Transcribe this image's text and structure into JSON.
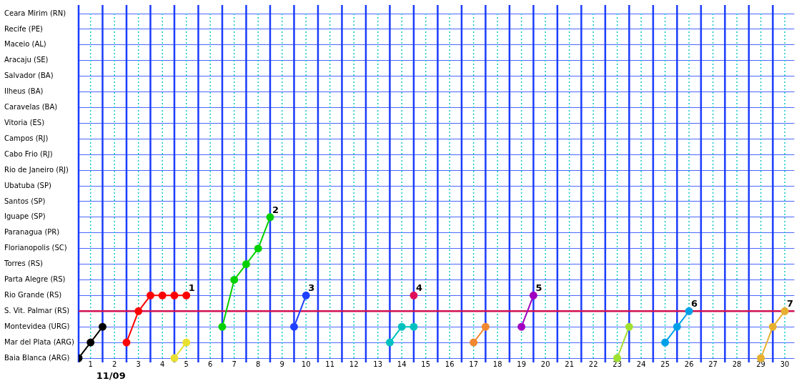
{
  "chart_data": {
    "type": "line",
    "orientation": "horizontal",
    "categories": [
      "Ceara Mirim (RN)",
      "Recife (PE)",
      "Maceio (AL)",
      "Aracaju (SE)",
      "Salvador (BA)",
      "Ilheus (BA)",
      "Caravelas (BA)",
      "Vitoria (ES)",
      "Campos (RJ)",
      "Cabo Frio (RJ)",
      "Rio de Janeiro (RJ)",
      "Ubatuba (SP)",
      "Santos (SP)",
      "Iguape (SP)",
      "Paranagua (PR)",
      "Florianopolis (SC)",
      "Torres (RS)",
      "Parta Alegre (RS)",
      "Rio Grande (RS)",
      "S. Vit. Palmar (RS)",
      "Montevidea (URG)",
      "Mar del Plata (ARG)",
      "Baia Blanca (ARG)"
    ],
    "xlim": [
      0.5,
      30.4
    ],
    "xticks": [
      1,
      2,
      3,
      4,
      5,
      6,
      7,
      8,
      9,
      10,
      11,
      12,
      13,
      14,
      15,
      16,
      17,
      18,
      19,
      20,
      21,
      22,
      23,
      24,
      25,
      26,
      27,
      28,
      29,
      30
    ],
    "series": [
      {
        "color": "#000000",
        "values": [
          0.5,
          1,
          1.5
        ],
        "x": [
          "Baia Blanca (ARG)",
          "Mar del Plata (ARG)",
          "Montevidea (URG)"
        ]
      },
      {
        "color": "#ff0000",
        "values": [
          2.5,
          3,
          3.5,
          4,
          4.5,
          5
        ],
        "x": [
          "Mar del Plata (ARG)",
          "S. Vit. Palmar (RS)",
          "Rio Grande (RS)",
          "Rio Grande (RS)",
          "Rio Grande (RS)",
          "Rio Grande (RS)"
        ]
      },
      {
        "color": "#e8e030",
        "values": [
          4.5,
          5
        ],
        "x": [
          "Baia Blanca (ARG)",
          "Mar del Plata (ARG)"
        ]
      },
      {
        "color": "#00d000",
        "values": [
          6.5,
          7,
          7.5,
          8,
          8.5
        ],
        "x": [
          "Montevidea (URG)",
          "Parta Alegre (RS)",
          "Torres (RS)",
          "Florianopolis (SC)",
          "Iguape (SP)"
        ]
      },
      {
        "color": "#2040ff",
        "values": [
          9.5,
          10
        ],
        "x": [
          "Montevidea (URG)",
          "Rio Grande (RS)"
        ]
      },
      {
        "color": "#00c0c0",
        "values": [
          13.5,
          14,
          14.5
        ],
        "x": [
          "Mar del Plata (ARG)",
          "Montevidea (URG)",
          "Montevidea (URG)"
        ]
      },
      {
        "color": "#e0105a",
        "values": [
          14.5
        ],
        "x": [
          "Rio Grande (RS)"
        ]
      },
      {
        "color": "#f08830",
        "values": [
          17,
          17.5
        ],
        "x": [
          "Mar del Plata (ARG)",
          "Montevidea (URG)"
        ]
      },
      {
        "color": "#a000c0",
        "values": [
          19,
          19.5
        ],
        "x": [
          "Montevidea (URG)",
          "Rio Grande (RS)"
        ]
      },
      {
        "color": "#a0e030",
        "values": [
          23,
          23.5
        ],
        "x": [
          "Baia Blanca (ARG)",
          "Montevidea (URG)"
        ]
      },
      {
        "color": "#00a0e8",
        "values": [
          25,
          25.5,
          26
        ],
        "x": [
          "Mar del Plata (ARG)",
          "Montevidea (URG)",
          "S. Vit. Palmar (RS)"
        ]
      },
      {
        "color": "#e8b030",
        "values": [
          29,
          29.5,
          30
        ],
        "x": [
          "Baia Blanca (ARG)",
          "Montevidea (URG)",
          "S. Vit. Palmar (RS)"
        ]
      }
    ],
    "ref_lines": [
      {
        "axis": "y",
        "value": "S. Vit. Palmar (RS)",
        "color": "#d01050"
      },
      {
        "axis": "x",
        "value": 0.5,
        "color": "#1a3cff"
      },
      {
        "axis": "x",
        "value": 1.5,
        "color": "#1a3cff"
      },
      {
        "axis": "x",
        "value": 2.5,
        "color": "#1a3cff"
      },
      {
        "axis": "x",
        "value": 3.5,
        "color": "#1a3cff"
      },
      {
        "axis": "x",
        "value": 4.5,
        "color": "#1a3cff"
      },
      {
        "axis": "x",
        "value": 5.5,
        "color": "#1a3cff"
      },
      {
        "axis": "x",
        "value": 6.5,
        "color": "#1a3cff"
      },
      {
        "axis": "x",
        "value": 7.5,
        "color": "#1a3cff"
      },
      {
        "axis": "x",
        "value": 8.5,
        "color": "#1a3cff"
      },
      {
        "axis": "x",
        "value": 9.5,
        "color": "#1a3cff"
      },
      {
        "axis": "x",
        "value": 10.5,
        "color": "#1a3cff"
      },
      {
        "axis": "x",
        "value": 11.5,
        "color": "#1a3cff"
      },
      {
        "axis": "x",
        "value": 12.5,
        "color": "#1a3cff"
      },
      {
        "axis": "x",
        "value": 13.5,
        "color": "#1a3cff"
      },
      {
        "axis": "x",
        "value": 14.5,
        "color": "#1a3cff"
      },
      {
        "axis": "x",
        "value": 15.5,
        "color": "#1a3cff"
      },
      {
        "axis": "x",
        "value": 16.5,
        "color": "#1a3cff"
      },
      {
        "axis": "x",
        "value": 17.5,
        "color": "#1a3cff"
      },
      {
        "axis": "x",
        "value": 18.5,
        "color": "#1a3cff"
      },
      {
        "axis": "x",
        "value": 19.5,
        "color": "#1a3cff"
      },
      {
        "axis": "x",
        "value": 20.5,
        "color": "#1a3cff"
      },
      {
        "axis": "x",
        "value": 21.5,
        "color": "#1a3cff"
      },
      {
        "axis": "x",
        "value": 22.5,
        "color": "#1a3cff"
      },
      {
        "axis": "x",
        "value": 23.5,
        "color": "#1a3cff"
      },
      {
        "axis": "x",
        "value": 24.5,
        "color": "#1a3cff"
      },
      {
        "axis": "x",
        "value": 25.5,
        "color": "#1a3cff"
      },
      {
        "axis": "x",
        "value": 26.5,
        "color": "#1a3cff"
      },
      {
        "axis": "x",
        "value": 27.5,
        "color": "#1a3cff"
      },
      {
        "axis": "x",
        "value": 28.5,
        "color": "#1a3cff"
      },
      {
        "axis": "x",
        "value": 29.5,
        "color": "#1a3cff"
      },
      {
        "axis": "x",
        "value": 1,
        "color": "#10c8c8",
        "line_style": "dotted"
      },
      {
        "axis": "x",
        "value": 2,
        "color": "#10c8c8",
        "line_style": "dotted"
      },
      {
        "axis": "x",
        "value": 3,
        "color": "#10c8c8",
        "line_style": "dotted"
      },
      {
        "axis": "x",
        "value": 4,
        "color": "#10c8c8",
        "line_style": "dotted"
      },
      {
        "axis": "x",
        "value": 5,
        "color": "#10c8c8",
        "line_style": "dotted"
      },
      {
        "axis": "x",
        "value": 6,
        "color": "#10c8c8",
        "line_style": "dotted"
      },
      {
        "axis": "x",
        "value": 7,
        "color": "#10c8c8",
        "line_style": "dotted"
      },
      {
        "axis": "x",
        "value": 8,
        "color": "#10c8c8",
        "line_style": "dotted"
      },
      {
        "axis": "x",
        "value": 9,
        "color": "#10c8c8",
        "line_style": "dotted"
      },
      {
        "axis": "x",
        "value": 10,
        "color": "#10c8c8",
        "line_style": "dotted"
      },
      {
        "axis": "x",
        "value": 11,
        "color": "#10c8c8",
        "line_style": "dotted"
      },
      {
        "axis": "x",
        "value": 12,
        "color": "#10c8c8",
        "line_style": "dotted"
      },
      {
        "axis": "x",
        "value": 13,
        "color": "#10c8c8",
        "line_style": "dotted"
      },
      {
        "axis": "x",
        "value": 14,
        "color": "#10c8c8",
        "line_style": "dotted"
      },
      {
        "axis": "x",
        "value": 15,
        "color": "#10c8c8",
        "line_style": "dotted"
      },
      {
        "axis": "x",
        "value": 16,
        "color": "#10c8c8",
        "line_style": "dotted"
      },
      {
        "axis": "x",
        "value": 17,
        "color": "#10c8c8",
        "line_style": "dotted"
      },
      {
        "axis": "x",
        "value": 18,
        "color": "#10c8c8",
        "line_style": "dotted"
      },
      {
        "axis": "x",
        "value": 19,
        "color": "#10c8c8",
        "line_style": "dotted"
      },
      {
        "axis": "x",
        "value": 20,
        "color": "#10c8c8",
        "line_style": "dotted"
      },
      {
        "axis": "x",
        "value": 21,
        "color": "#10c8c8",
        "line_style": "dotted"
      },
      {
        "axis": "x",
        "value": 22,
        "color": "#10c8c8",
        "line_style": "dotted"
      },
      {
        "axis": "x",
        "value": 23,
        "color": "#10c8c8",
        "line_style": "dotted"
      },
      {
        "axis": "x",
        "value": 24,
        "color": "#10c8c8",
        "line_style": "dotted"
      },
      {
        "axis": "x",
        "value": 25,
        "color": "#10c8c8",
        "line_style": "dotted"
      },
      {
        "axis": "x",
        "value": 26,
        "color": "#10c8c8",
        "line_style": "dotted"
      },
      {
        "axis": "x",
        "value": 27,
        "color": "#10c8c8",
        "line_style": "dotted"
      },
      {
        "axis": "x",
        "value": 28,
        "color": "#10c8c8",
        "line_style": "dotted"
      },
      {
        "axis": "x",
        "value": 29,
        "color": "#10c8c8",
        "line_style": "dotted"
      },
      {
        "axis": "x",
        "value": 30,
        "color": "#10c8c8",
        "line_style": "dotted"
      }
    ],
    "annotations": [
      {
        "text": "1",
        "x": 5,
        "y": "Rio Grande (RS)"
      },
      {
        "text": "2",
        "x": 8.5,
        "y": "Iguape (SP)"
      },
      {
        "text": "3",
        "x": 10,
        "y": "Rio Grande (RS)"
      },
      {
        "text": "4",
        "x": 14.5,
        "y": "Rio Grande (RS)"
      },
      {
        "text": "5",
        "x": 19.5,
        "y": "Rio Grande (RS)"
      },
      {
        "text": "6",
        "x": 26,
        "y": "S. Vit. Palmar (RS)"
      },
      {
        "text": "7",
        "x": 30,
        "y": "S. Vit. Palmar (RS)"
      },
      "11/09"
    ],
    "grid": "y",
    "legend": false,
    "marker": "circle"
  }
}
